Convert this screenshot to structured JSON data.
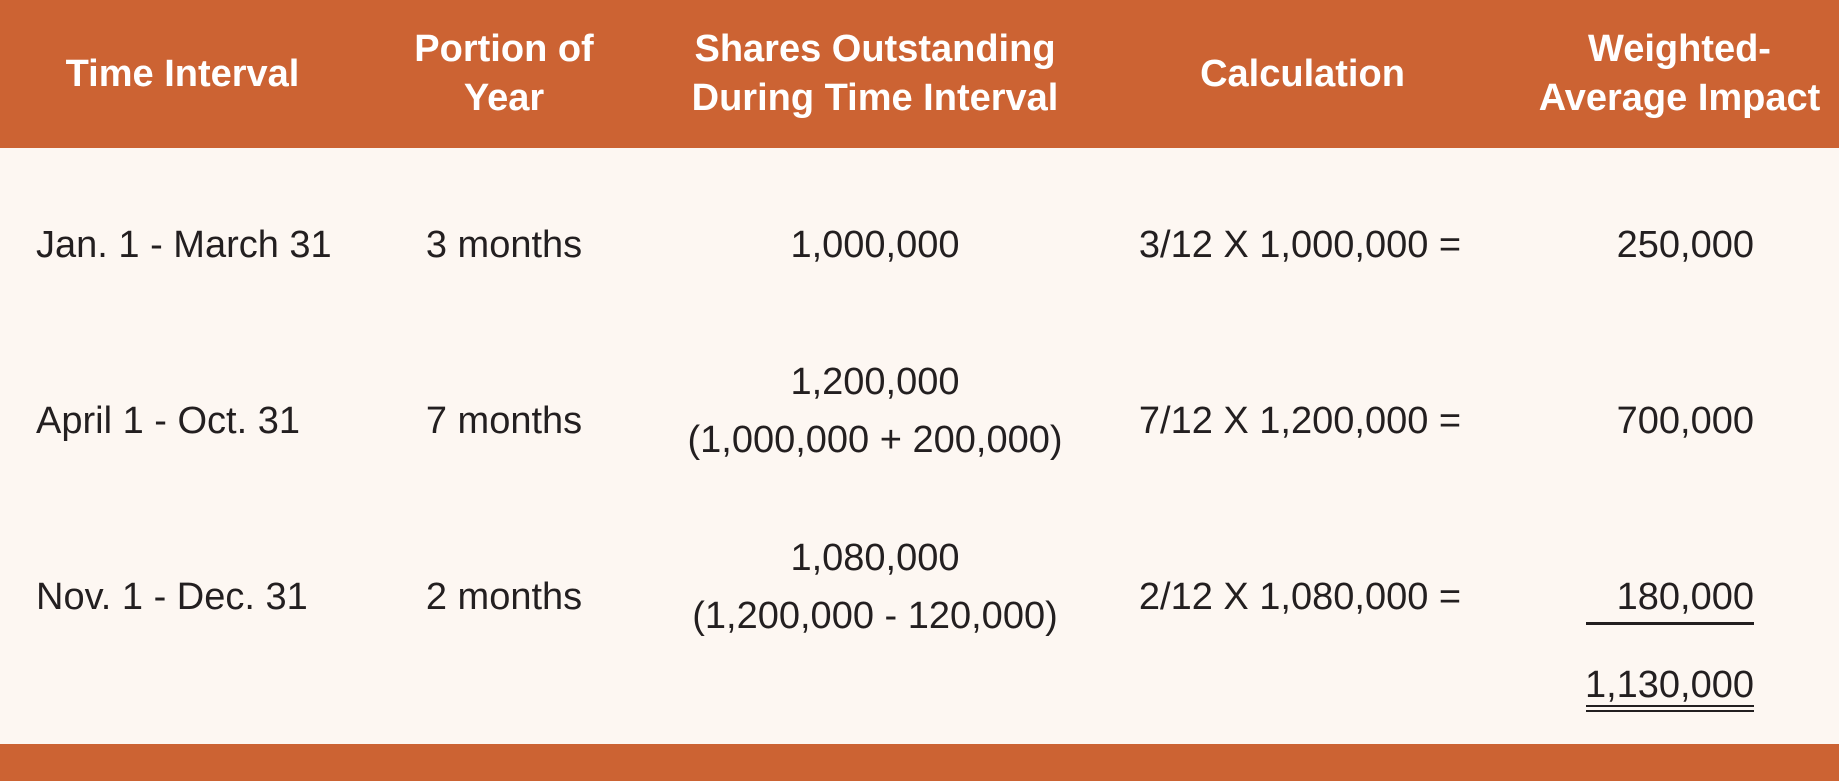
{
  "header": {
    "time_interval": "Time Interval",
    "portion_line1": "Portion of",
    "portion_line2": "Year",
    "shares_line1": "Shares Outstanding",
    "shares_line2": "During Time Interval",
    "calculation": "Calculation",
    "impact_line1": "Weighted-",
    "impact_line2": "Average Impact"
  },
  "rows": [
    {
      "interval": "Jan. 1 - March 31",
      "portion": "3 months",
      "shares": "1,000,000",
      "shares_detail": "",
      "calculation": "3/12 X 1,000,000 =",
      "impact": "250,000"
    },
    {
      "interval": "April 1 - Oct. 31",
      "portion": "7 months",
      "shares": "1,200,000",
      "shares_detail": "(1,000,000 + 200,000)",
      "calculation": "7/12 X 1,200,000 =",
      "impact": "700,000"
    },
    {
      "interval": "Nov. 1 - Dec. 31",
      "portion": "2 months",
      "shares": "1,080,000",
      "shares_detail": "(1,200,000 - 120,000)",
      "calculation": "2/12 X 1,080,000 =",
      "impact": "180,000"
    }
  ],
  "total": "1,130,000",
  "colors": {
    "header_bg": "#cc6333",
    "page_bg": "#fdf7f2",
    "text": "#231f20"
  }
}
